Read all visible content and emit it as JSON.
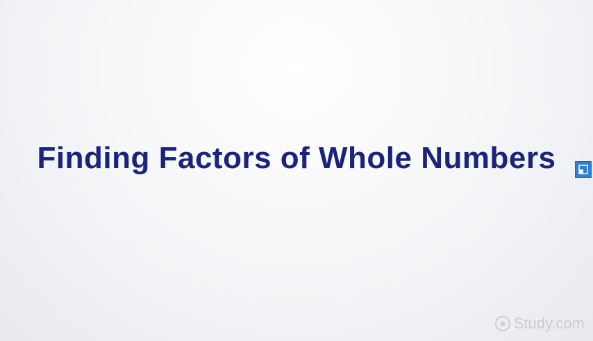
{
  "slide": {
    "title": "Finding Factors of Whole Numbers",
    "title_color": "#1a237e"
  },
  "controls": {
    "expand_icon": "expand-icon",
    "expand_color": "#2f80d3"
  },
  "watermark": {
    "text": "Study.com",
    "icon": "play-circle-icon",
    "color": "#c9ccd2"
  }
}
